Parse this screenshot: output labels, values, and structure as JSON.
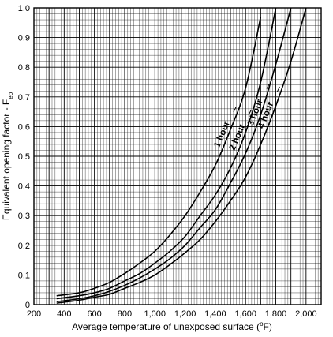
{
  "chart_data": {
    "type": "line",
    "xlabel_main": "Average temperature of unexposed surface (",
    "xlabel_sup": "o",
    "xlabel_tail": "F)",
    "ylabel_main": "Equivalent opening factor - F",
    "ylabel_sub": "eo",
    "xlim": [
      200,
      2100
    ],
    "ylim": [
      0,
      1.0
    ],
    "x_ticks": [
      200,
      400,
      600,
      800,
      1000,
      1200,
      1400,
      1600,
      1800,
      2000
    ],
    "x_tick_labels": [
      "200",
      "400",
      "600",
      "800",
      "1,000",
      "1,200",
      "1,400",
      "1,600",
      "1,800",
      "2,000"
    ],
    "y_ticks": [
      0,
      0.1,
      0.2,
      0.3,
      0.4,
      0.5,
      0.6,
      0.7,
      0.8,
      0.9,
      1.0
    ],
    "y_tick_labels": [
      "0",
      "0.1",
      "0.2",
      "0.3",
      "0.4",
      "0.5",
      "0.6",
      "0.7",
      "0.8",
      "0.9",
      "1.0"
    ],
    "grid": "major and minor",
    "series": [
      {
        "name": "1 hour",
        "x": [
          350,
          500,
          600,
          700,
          800,
          900,
          1000,
          1100,
          1200,
          1300,
          1400,
          1500,
          1600,
          1700
        ],
        "y": [
          0.03,
          0.04,
          0.055,
          0.075,
          0.105,
          0.14,
          0.18,
          0.235,
          0.3,
          0.38,
          0.47,
          0.59,
          0.73,
          0.97
        ]
      },
      {
        "name": "2 hour",
        "x": [
          350,
          500,
          600,
          700,
          800,
          900,
          1000,
          1100,
          1200,
          1300,
          1400,
          1500,
          1600,
          1700,
          1800
        ],
        "y": [
          0.02,
          0.03,
          0.04,
          0.055,
          0.08,
          0.105,
          0.14,
          0.18,
          0.23,
          0.3,
          0.37,
          0.46,
          0.58,
          0.75,
          1.0
        ]
      },
      {
        "name": "3 hour",
        "x": [
          350,
          500,
          600,
          700,
          800,
          900,
          1000,
          1100,
          1200,
          1300,
          1400,
          1500,
          1600,
          1700,
          1800,
          1900
        ],
        "y": [
          0.01,
          0.02,
          0.03,
          0.045,
          0.065,
          0.09,
          0.12,
          0.155,
          0.2,
          0.26,
          0.32,
          0.41,
          0.51,
          0.64,
          0.81,
          1.0
        ]
      },
      {
        "name": "4 hour",
        "x": [
          350,
          500,
          600,
          700,
          800,
          900,
          1000,
          1100,
          1200,
          1300,
          1400,
          1500,
          1600,
          1700,
          1800,
          1900,
          2000
        ],
        "y": [
          0.005,
          0.015,
          0.025,
          0.035,
          0.055,
          0.075,
          0.1,
          0.135,
          0.175,
          0.22,
          0.28,
          0.35,
          0.43,
          0.54,
          0.67,
          0.82,
          1.0
        ]
      }
    ]
  }
}
